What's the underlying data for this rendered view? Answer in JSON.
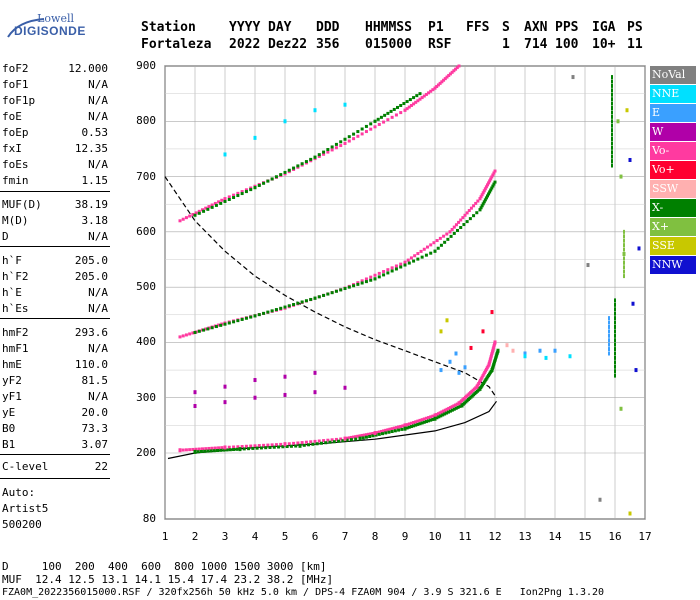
{
  "logo": {
    "line1": "Lowell",
    "line2": "DIGISONDE"
  },
  "header": {
    "row1": [
      "Station",
      "YYYY",
      "DAY",
      "DDD",
      "HHMMSS",
      "P1",
      "FFS",
      "S",
      "AXN",
      "PPS",
      "IGA",
      "PS"
    ],
    "row2": [
      "Fortaleza",
      "2022",
      "Dez22",
      "356",
      "015000",
      "RSF",
      "",
      "1",
      "714",
      "100",
      "10+",
      "11"
    ]
  },
  "params": [
    {
      "name": "foF2",
      "value": "12.000"
    },
    {
      "name": "foF1",
      "value": "N/A"
    },
    {
      "name": "foF1p",
      "value": "N/A"
    },
    {
      "name": "foE",
      "value": "N/A"
    },
    {
      "name": "foEp",
      "value": "0.53"
    },
    {
      "name": "fxI",
      "value": "12.35"
    },
    {
      "name": "foEs",
      "value": "N/A"
    },
    {
      "name": "fmin",
      "value": "1.15"
    },
    {
      "name": "MUF(D)",
      "value": "38.19"
    },
    {
      "name": "M(D)",
      "value": "3.18"
    },
    {
      "name": "D",
      "value": "N/A"
    },
    {
      "name": "h`F",
      "value": "205.0"
    },
    {
      "name": "h`F2",
      "value": "205.0"
    },
    {
      "name": "h`E",
      "value": "N/A"
    },
    {
      "name": "h`Es",
      "value": "N/A"
    },
    {
      "name": "hmF2",
      "value": "293.6"
    },
    {
      "name": "hmF1",
      "value": "N/A"
    },
    {
      "name": "hmE",
      "value": "110.0"
    },
    {
      "name": "yF2",
      "value": "81.5"
    },
    {
      "name": "yF1",
      "value": "N/A"
    },
    {
      "name": "yE",
      "value": "20.0"
    },
    {
      "name": "B0",
      "value": "73.3"
    },
    {
      "name": "B1",
      "value": "3.07"
    },
    {
      "name": "C-level",
      "value": "22"
    }
  ],
  "auto": {
    "line1": "Auto:",
    "line2": "Artist5",
    "line3": "500200"
  },
  "legend": [
    {
      "label": "NoVal",
      "color": "#808080"
    },
    {
      "label": "NNE",
      "color": "#00e0ff"
    },
    {
      "label": "E",
      "color": "#3aa0ff"
    },
    {
      "label": "W",
      "color": "#b000a8"
    },
    {
      "label": "Vo-",
      "color": "#ff3aa0"
    },
    {
      "label": "Vo+",
      "color": "#ff0030"
    },
    {
      "label": "SSW",
      "color": "#ffb0b0"
    },
    {
      "label": "X-",
      "color": "#008000"
    },
    {
      "label": "X+",
      "color": "#80c040"
    },
    {
      "label": "SSE",
      "color": "#c8c800"
    },
    {
      "label": "NNW",
      "color": "#1010d0"
    }
  ],
  "bottom": {
    "d_line": "D     100  200  400  600  800 1000 1500 3000 [km]",
    "muf_line": "MUF  12.4 12.5 13.1 14.1 15.4 17.4 23.2 38.2 [MHz]",
    "footer": "FZA0M_2022356015000.RSF / 320fx256h 50 kHz 5.0 km / DPS-4 FZA0M 904 / 3.9 S 321.6 E   Ion2Png 1.3.20"
  },
  "chart_data": {
    "type": "scatter",
    "xlabel": "",
    "ylabel": "",
    "xlim": [
      1,
      17
    ],
    "ylim": [
      80,
      900
    ],
    "x_ticks": [
      1,
      2,
      3,
      4,
      5,
      6,
      7,
      8,
      9,
      10,
      11,
      12,
      13,
      14,
      15,
      16,
      17
    ],
    "y_ticks": [
      80,
      200,
      300,
      400,
      500,
      600,
      700,
      800,
      900
    ],
    "grid": true,
    "legend_position": "right",
    "series": [
      {
        "name": "Vo-",
        "color": "#ff3aa0",
        "points": [
          [
            1.5,
            205
          ],
          [
            3,
            210
          ],
          [
            5,
            216
          ],
          [
            7,
            226
          ],
          [
            8,
            236
          ],
          [
            9,
            250
          ],
          [
            10,
            268
          ],
          [
            10.8,
            290
          ],
          [
            11.4,
            320
          ],
          [
            11.8,
            360
          ],
          [
            12.0,
            400
          ]
        ]
      },
      {
        "name": "X-",
        "color": "#008000",
        "points": [
          [
            2,
            202
          ],
          [
            3.5,
            207
          ],
          [
            5.5,
            213
          ],
          [
            7.5,
            226
          ],
          [
            9,
            244
          ],
          [
            10,
            262
          ],
          [
            10.9,
            286
          ],
          [
            11.5,
            316
          ],
          [
            11.9,
            350
          ],
          [
            12.1,
            385
          ]
        ]
      },
      {
        "name": "W",
        "color": "#b000a8",
        "points": [
          [
            2,
            285
          ],
          [
            3,
            292
          ],
          [
            4,
            300
          ],
          [
            5,
            305
          ],
          [
            6,
            310
          ],
          [
            7,
            318
          ],
          [
            2,
            310
          ],
          [
            3,
            320
          ],
          [
            4,
            332
          ],
          [
            5,
            338
          ],
          [
            6,
            345
          ]
        ]
      },
      {
        "name": "E",
        "color": "#3aa0ff",
        "points": [
          [
            10.2,
            350
          ],
          [
            10.5,
            365
          ],
          [
            10.7,
            380
          ],
          [
            10.8,
            345
          ],
          [
            11,
            355
          ],
          [
            13,
            380
          ],
          [
            13.5,
            385
          ],
          [
            14,
            385
          ]
        ]
      },
      {
        "name": "NNE",
        "color": "#00e0ff",
        "points": [
          [
            3,
            740
          ],
          [
            4,
            770
          ],
          [
            5,
            800
          ],
          [
            6,
            820
          ],
          [
            7,
            830
          ],
          [
            13,
            375
          ],
          [
            13.7,
            372
          ],
          [
            14.5,
            375
          ]
        ]
      },
      {
        "name": "Vo+",
        "color": "#ff0030",
        "points": [
          [
            11.2,
            390
          ],
          [
            11.6,
            420
          ],
          [
            11.9,
            455
          ]
        ]
      },
      {
        "name": "X+",
        "color": "#80c040",
        "points": [
          [
            16.1,
            800
          ],
          [
            16.2,
            700
          ],
          [
            16.3,
            560
          ],
          [
            16.2,
            280
          ]
        ]
      },
      {
        "name": "SSE",
        "color": "#c8c800",
        "points": [
          [
            10.2,
            420
          ],
          [
            10.4,
            440
          ],
          [
            16.4,
            820
          ],
          [
            16.5,
            90
          ]
        ]
      },
      {
        "name": "NNW",
        "color": "#1010d0",
        "points": [
          [
            16.6,
            470
          ],
          [
            16.7,
            350
          ],
          [
            16.5,
            730
          ],
          [
            16.8,
            570
          ]
        ]
      },
      {
        "name": "SSW",
        "color": "#ffb0b0",
        "points": [
          [
            12.4,
            395
          ],
          [
            12.6,
            385
          ]
        ]
      },
      {
        "name": "NoVal",
        "color": "#808080",
        "points": [
          [
            14.6,
            880
          ],
          [
            15.1,
            540
          ],
          [
            15.5,
            115
          ]
        ]
      }
    ],
    "traces": [
      {
        "name": "F2 o-trace (upper)",
        "color": "#ff3aa0",
        "points": [
          [
            1.5,
            410
          ],
          [
            3,
            435
          ],
          [
            5,
            462
          ],
          [
            7,
            498
          ],
          [
            9,
            545
          ],
          [
            10.5,
            600
          ],
          [
            11.5,
            660
          ],
          [
            12,
            710
          ]
        ]
      },
      {
        "name": "F2 o-trace (2nd hop)",
        "color": "#ff3aa0",
        "points": [
          [
            1.5,
            620
          ],
          [
            3,
            660
          ],
          [
            5,
            705
          ],
          [
            7,
            760
          ],
          [
            9,
            820
          ],
          [
            10,
            860
          ],
          [
            10.8,
            900
          ]
        ]
      },
      {
        "name": "F2 x-trace (2nd hop)",
        "color": "#008000",
        "points": [
          [
            2,
            630
          ],
          [
            4,
            680
          ],
          [
            6,
            735
          ],
          [
            8,
            800
          ],
          [
            9.5,
            850
          ]
        ]
      },
      {
        "name": "F2 x-trace (upper)",
        "color": "#008000",
        "points": [
          [
            2,
            418
          ],
          [
            4,
            448
          ],
          [
            6,
            480
          ],
          [
            8,
            515
          ],
          [
            10,
            565
          ],
          [
            11.5,
            640
          ],
          [
            12,
            690
          ]
        ]
      },
      {
        "name": "Vo-",
        "color": "#ff3aa0",
        "points": [
          [
            1.5,
            205
          ],
          [
            3,
            210
          ],
          [
            5,
            216
          ],
          [
            7,
            226
          ],
          [
            8,
            236
          ],
          [
            9,
            250
          ],
          [
            10,
            268
          ],
          [
            10.8,
            290
          ],
          [
            11.4,
            320
          ],
          [
            11.8,
            360
          ],
          [
            12.0,
            400
          ]
        ]
      },
      {
        "name": "X-",
        "color": "#008000",
        "points": [
          [
            2,
            202
          ],
          [
            3.5,
            207
          ],
          [
            5.5,
            213
          ],
          [
            7.5,
            226
          ],
          [
            9,
            244
          ],
          [
            10,
            262
          ],
          [
            10.9,
            286
          ],
          [
            11.5,
            316
          ],
          [
            11.9,
            350
          ],
          [
            12.1,
            385
          ]
        ]
      }
    ],
    "profile_solid": [
      [
        1.1,
        190
      ],
      [
        2,
        200
      ],
      [
        4,
        210
      ],
      [
        6,
        216
      ],
      [
        8,
        225
      ],
      [
        10,
        240
      ],
      [
        11,
        255
      ],
      [
        11.8,
        275
      ],
      [
        12.05,
        293.6
      ]
    ],
    "profile_dashed": [
      [
        1,
        700
      ],
      [
        2,
        620
      ],
      [
        3,
        565
      ],
      [
        4,
        520
      ],
      [
        5,
        485
      ],
      [
        6,
        455
      ],
      [
        7,
        428
      ],
      [
        8,
        405
      ],
      [
        9,
        385
      ],
      [
        10,
        365
      ],
      [
        11,
        345
      ],
      [
        11.8,
        320
      ],
      [
        12.05,
        300
      ]
    ],
    "vertical_fringe": [
      {
        "x": 15.8,
        "yrange": [
          380,
          450
        ],
        "color": "#3aa0ff"
      },
      {
        "x": 15.9,
        "yrange": [
          720,
          880
        ],
        "color": "#008000"
      },
      {
        "x": 16.0,
        "yrange": [
          340,
          480
        ],
        "color": "#008000"
      },
      {
        "x": 16.3,
        "yrange": [
          520,
          600
        ],
        "color": "#80c040"
      }
    ]
  }
}
